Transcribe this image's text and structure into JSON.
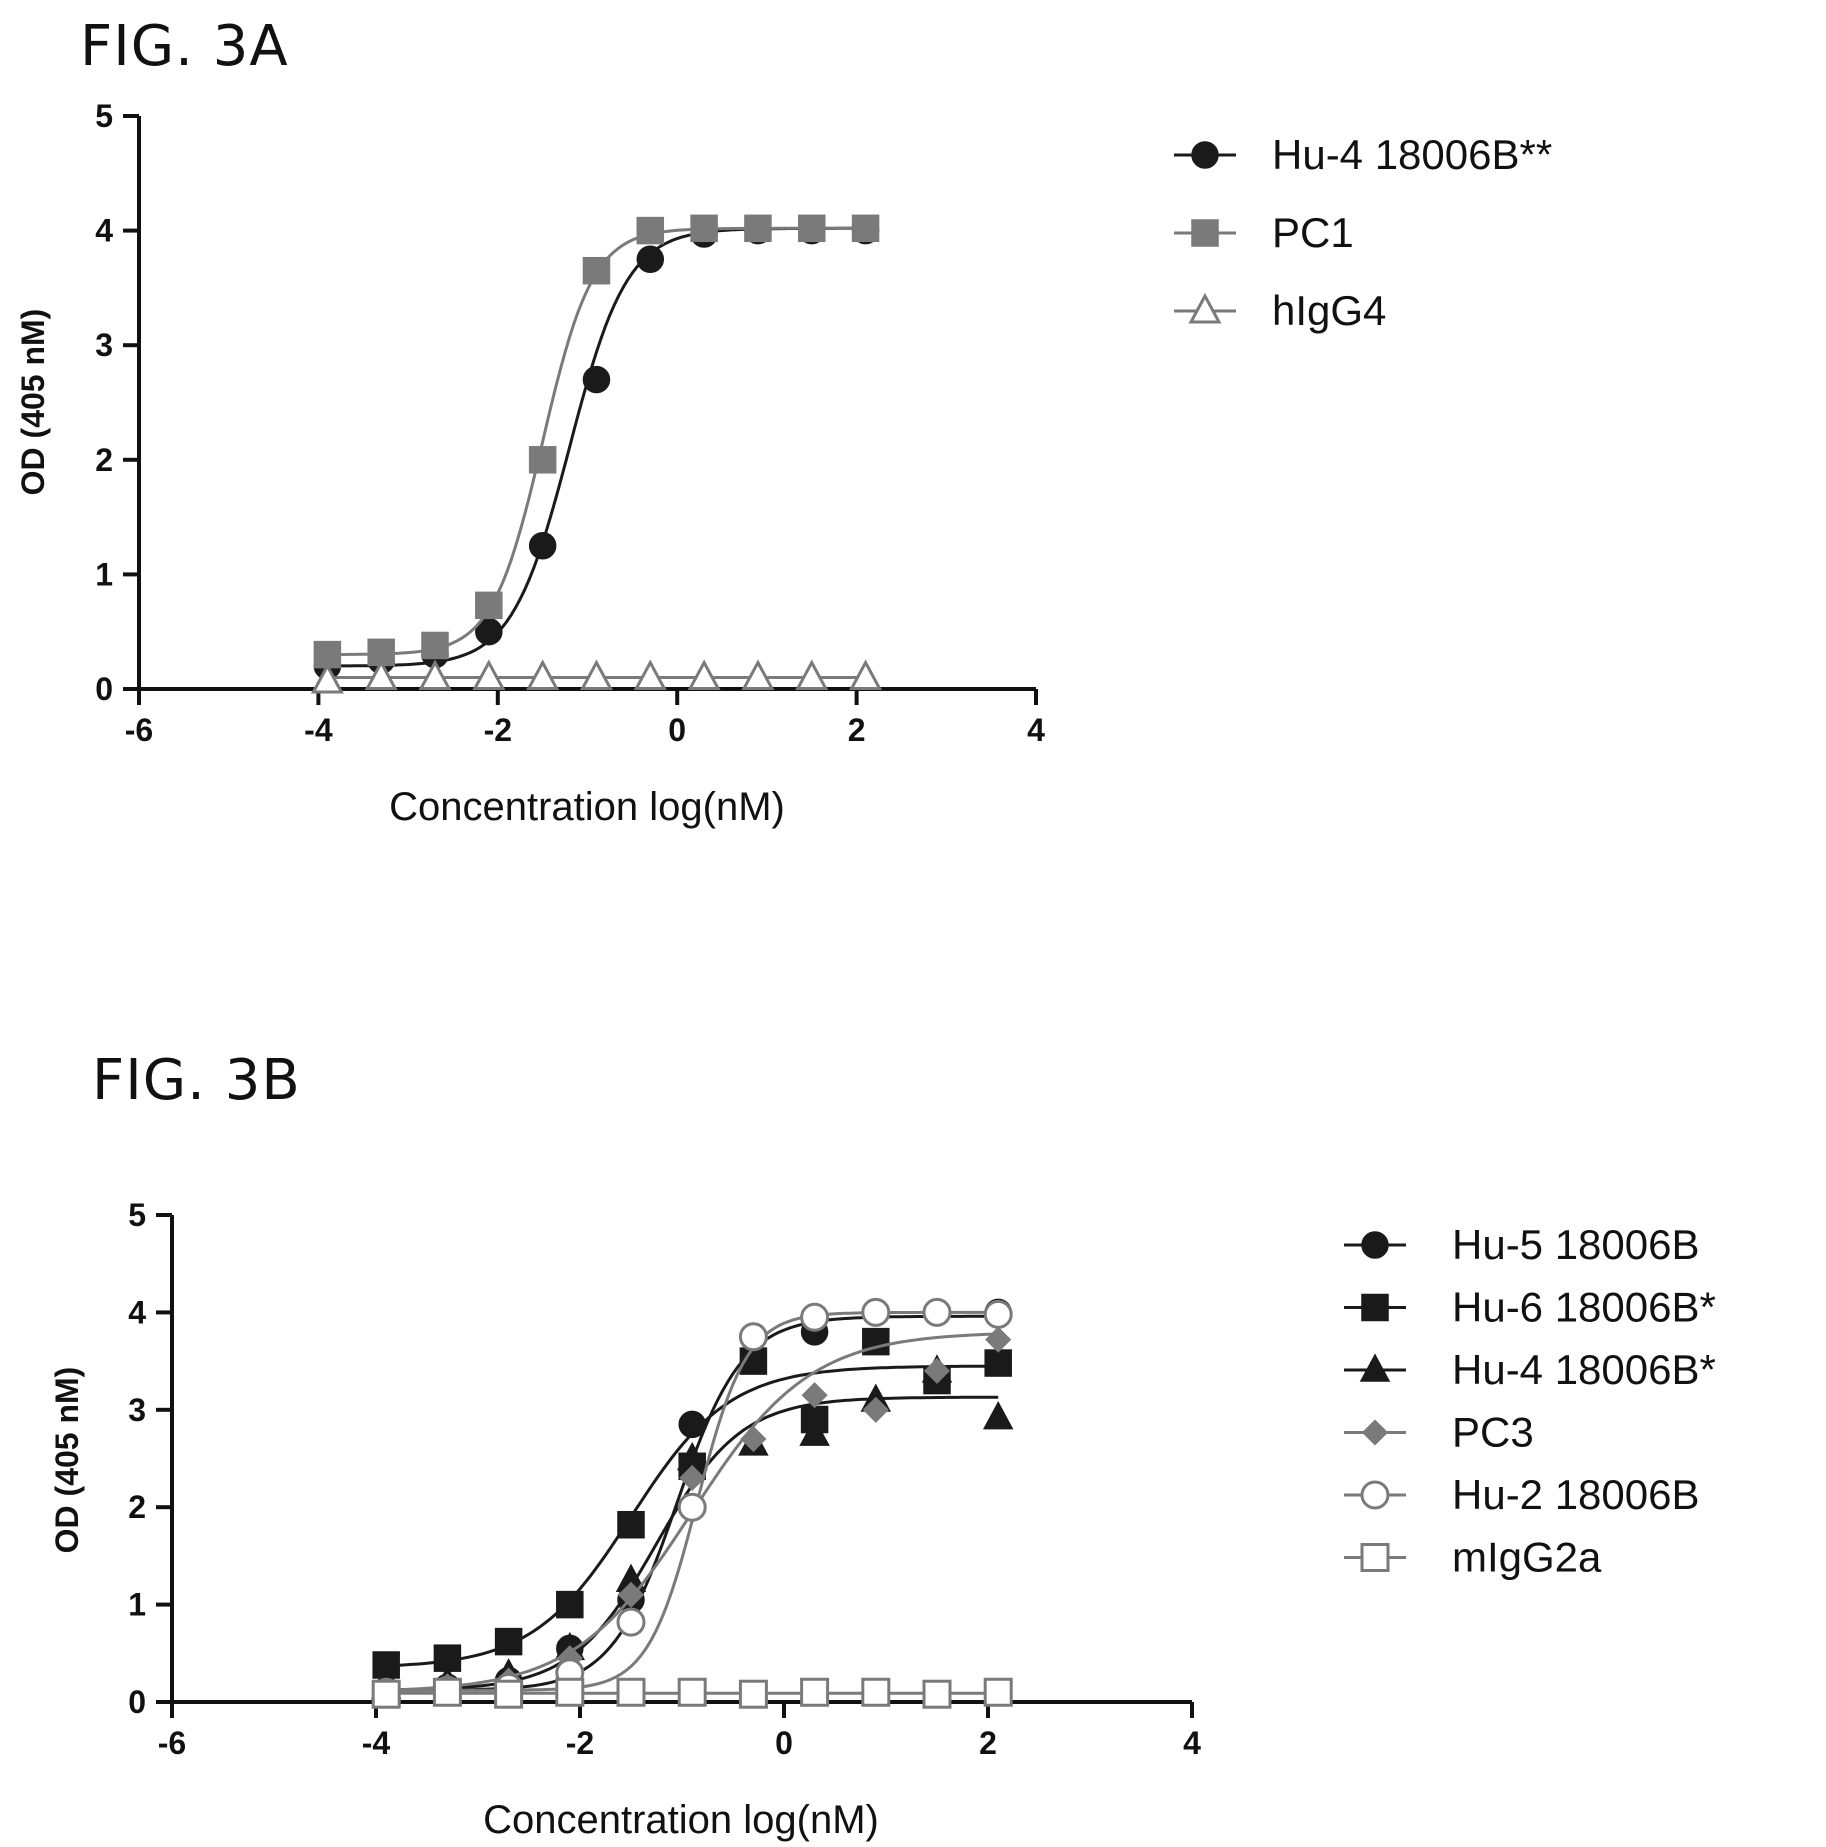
{
  "figures": {
    "a_label": "FIG. 3A",
    "b_label": "FIG. 3B"
  },
  "chart_data": [
    {
      "type": "scatter",
      "figure": "FIG. 3A",
      "xlabel": "Concentration log(nM)",
      "ylabel": "OD (405 nM)",
      "xlim": [
        -6,
        4
      ],
      "ylim": [
        0,
        5
      ],
      "xticks": [
        -6,
        -4,
        -2,
        0,
        2,
        4
      ],
      "yticks": [
        0,
        1,
        2,
        3,
        4,
        5
      ],
      "fitted_curves": true,
      "legend_position": "top-right",
      "series": [
        {
          "name": "Hu-4 18006B**",
          "marker": "circle-filled",
          "color": "#1a1a1a",
          "x": [
            -3.9,
            -3.3,
            -2.7,
            -2.1,
            -1.5,
            -0.9,
            -0.3,
            0.3,
            0.9,
            1.5,
            2.1
          ],
          "y": [
            0.2,
            0.25,
            0.3,
            0.5,
            1.25,
            2.7,
            3.75,
            3.97,
            4.0,
            4.0,
            4.0
          ],
          "fit": {
            "bottom": 0.2,
            "top": 4.02,
            "logEC50": -1.2,
            "hill": 1.35
          }
        },
        {
          "name": "PC1",
          "marker": "square-filled",
          "color": "#7a7a7a",
          "x": [
            -3.9,
            -3.3,
            -2.7,
            -2.1,
            -1.5,
            -0.9,
            -0.3,
            0.3,
            0.9,
            1.5,
            2.1
          ],
          "y": [
            0.3,
            0.32,
            0.38,
            0.73,
            2.0,
            3.65,
            4.0,
            4.02,
            4.02,
            4.02,
            4.02
          ],
          "fit": {
            "bottom": 0.3,
            "top": 4.02,
            "logEC50": -1.5,
            "hill": 1.55
          }
        },
        {
          "name": "hIgG4",
          "marker": "triangle-open",
          "color": "#7a7a7a",
          "x": [
            -3.9,
            -3.3,
            -2.7,
            -2.1,
            -1.5,
            -0.9,
            -0.3,
            0.3,
            0.9,
            1.5,
            2.1
          ],
          "y": [
            0.07,
            0.1,
            0.1,
            0.1,
            0.1,
            0.1,
            0.1,
            0.1,
            0.1,
            0.1,
            0.1
          ],
          "fit": {
            "bottom": 0.1,
            "top": 0.1,
            "logEC50": -1.0,
            "hill": 1.0
          }
        }
      ]
    },
    {
      "type": "scatter",
      "figure": "FIG. 3B",
      "xlabel": "Concentration log(nM)",
      "ylabel": "OD (405 nM)",
      "xlim": [
        -6,
        4
      ],
      "ylim": [
        0,
        5
      ],
      "xticks": [
        -6,
        -4,
        -2,
        0,
        2,
        4
      ],
      "yticks": [
        0,
        1,
        2,
        3,
        4,
        5
      ],
      "fitted_curves": true,
      "legend_position": "top-right",
      "series": [
        {
          "name": "Hu-5 18006B",
          "marker": "circle-filled",
          "color": "#1a1a1a",
          "x": [
            -3.9,
            -3.3,
            -2.7,
            -2.1,
            -1.5,
            -0.9,
            -0.3,
            0.3,
            0.9,
            1.5,
            2.1
          ],
          "y": [
            0.12,
            0.15,
            0.22,
            0.55,
            1.05,
            2.85,
            3.75,
            3.8,
            4.0,
            4.0,
            4.0
          ],
          "fit": {
            "bottom": 0.12,
            "top": 3.96,
            "logEC50": -1.05,
            "hill": 1.35
          }
        },
        {
          "name": "Hu-6 18006B*",
          "marker": "square-filled",
          "color": "#1a1a1a",
          "x": [
            -3.9,
            -3.3,
            -2.7,
            -2.1,
            -1.5,
            -0.9,
            -0.3,
            0.3,
            0.9,
            1.5,
            2.1
          ],
          "y": [
            0.38,
            0.45,
            0.62,
            1.0,
            1.82,
            2.42,
            3.5,
            2.9,
            3.7,
            3.3,
            3.48
          ],
          "fit": {
            "bottom": 0.35,
            "top": 3.45,
            "logEC50": -1.5,
            "hill": 0.9
          }
        },
        {
          "name": "Hu-4 18006B*",
          "marker": "triangle-filled",
          "color": "#1a1a1a",
          "x": [
            -3.9,
            -3.3,
            -2.7,
            -2.1,
            -1.5,
            -0.9,
            -0.3,
            0.3,
            0.9,
            1.5,
            2.1
          ],
          "y": [
            0.15,
            0.2,
            0.28,
            0.55,
            1.25,
            2.5,
            2.65,
            2.75,
            3.1,
            3.4,
            2.92
          ],
          "fit": {
            "bottom": 0.12,
            "top": 3.13,
            "logEC50": -1.25,
            "hill": 1.05
          }
        },
        {
          "name": "PC3",
          "marker": "diamond-filled",
          "color": "#7a7a7a",
          "x": [
            -3.9,
            -3.3,
            -2.7,
            -2.1,
            -1.5,
            -0.9,
            -0.3,
            0.3,
            0.9,
            1.5,
            2.1
          ],
          "y": [
            0.12,
            0.16,
            0.22,
            0.45,
            1.1,
            2.3,
            2.7,
            3.15,
            3.0,
            3.4,
            3.72
          ],
          "fit": {
            "bottom": 0.1,
            "top": 3.8,
            "logEC50": -0.9,
            "hill": 0.75
          }
        },
        {
          "name": "Hu-2 18006B",
          "marker": "circle-open",
          "color": "#7a7a7a",
          "x": [
            -3.9,
            -3.3,
            -2.7,
            -2.1,
            -1.5,
            -0.9,
            -0.3,
            0.3,
            0.9,
            1.5,
            2.1
          ],
          "y": [
            0.1,
            0.12,
            0.15,
            0.3,
            0.82,
            2.0,
            3.75,
            3.95,
            4.0,
            4.0,
            3.98
          ],
          "fit": {
            "bottom": 0.12,
            "top": 4.0,
            "logEC50": -0.85,
            "hill": 1.8
          }
        },
        {
          "name": "mIgG2a",
          "marker": "square-open",
          "color": "#7a7a7a",
          "x": [
            -3.9,
            -3.3,
            -2.7,
            -2.1,
            -1.5,
            -0.9,
            -0.3,
            0.3,
            0.9,
            1.5,
            2.1
          ],
          "y": [
            0.08,
            0.1,
            0.08,
            0.1,
            0.1,
            0.1,
            0.08,
            0.1,
            0.1,
            0.08,
            0.1
          ],
          "fit": {
            "bottom": 0.09,
            "top": 0.09,
            "logEC50": -1.0,
            "hill": 1.0
          }
        }
      ]
    }
  ]
}
